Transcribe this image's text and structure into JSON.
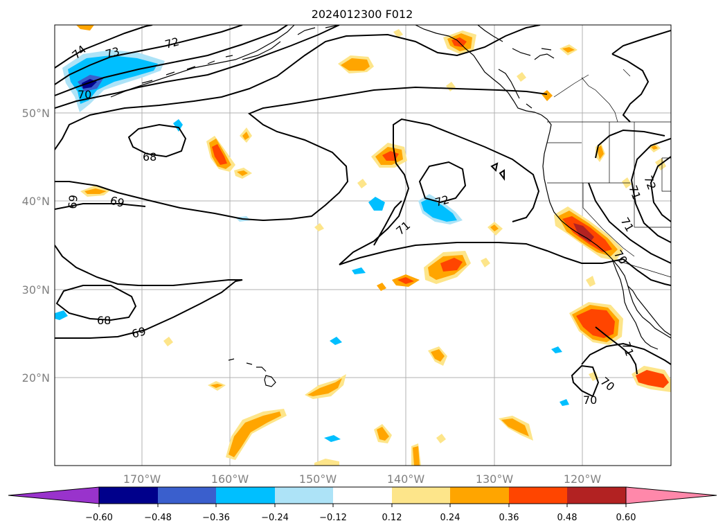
{
  "title": "2024012300 F012",
  "lat_labels": [
    "50°N",
    "40°N",
    "30°N",
    "20°N"
  ],
  "lon_labels": [
    "170°W",
    "160°W",
    "150°W",
    "140°W",
    "130°W",
    "120°W"
  ],
  "colorbar": {
    "ticks": [
      "−0.60",
      "−0.48",
      "−0.36",
      "−0.24",
      "−0.12",
      "0.12",
      "0.24",
      "0.36",
      "0.48",
      "0.60"
    ],
    "colors": [
      "#9933cc",
      "#00008b",
      "#3a5fcd",
      "#00bfff",
      "#ade3f7",
      "#ffffff",
      "#fde58a",
      "#ffa500",
      "#ff4500",
      "#b22222",
      "#ff88aa"
    ]
  },
  "contour_labels": [
    "74",
    "73",
    "72",
    "70",
    "68",
    "69",
    "69",
    "68",
    "69",
    "71",
    "72",
    "71",
    "71",
    "70",
    "71",
    "70",
    "70",
    "72"
  ],
  "fill_colors": {
    "orange_light": "#fde58a",
    "orange": "#ffa500",
    "red_orange": "#ff4500",
    "dark_red": "#b22222",
    "blue_light": "#ade3f7",
    "blue": "#00bfff",
    "blue_mid": "#3a5fcd",
    "navy": "#00008b"
  }
}
